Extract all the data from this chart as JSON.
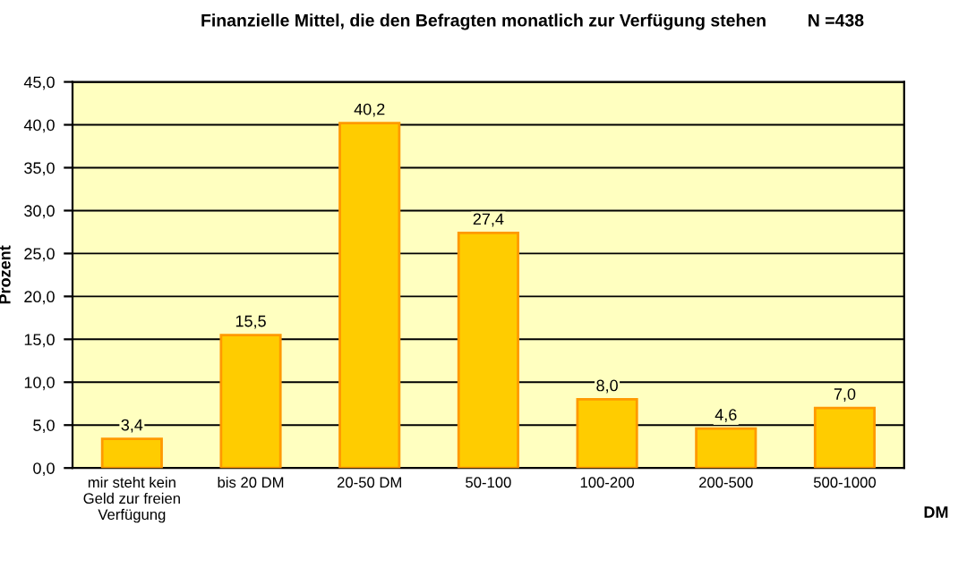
{
  "chart_data": {
    "type": "bar",
    "title": "Finanzielle Mittel, die den Befragten monatlich zur Verfügung stehen",
    "annotations": [
      "N =438"
    ],
    "xlabel": "DM",
    "ylabel": "Prozent",
    "categories": [
      "mir steht kein\nGeld zur freien\nVerfügung",
      "bis 20 DM",
      "20-50 DM",
      "50-100",
      "100-200",
      "200-500",
      "500-1000"
    ],
    "values": [
      3.4,
      15.5,
      40.2,
      27.4,
      8.0,
      4.6,
      7.0
    ],
    "value_labels": [
      "3,4",
      "15,5",
      "40,2",
      "27,4",
      "8,0",
      "4,6",
      "7,0"
    ],
    "color": "#ffcc00",
    "ylim": [
      0,
      45
    ],
    "yticks": [
      {
        "value": 0,
        "label": "0,0"
      },
      {
        "value": 5,
        "label": "5,0"
      },
      {
        "value": 10,
        "label": "10,0"
      },
      {
        "value": 15,
        "label": "15,0"
      },
      {
        "value": 20,
        "label": "20,0"
      },
      {
        "value": 25,
        "label": "25,0"
      },
      {
        "value": 30,
        "label": "30,0"
      },
      {
        "value": 35,
        "label": "35,0"
      },
      {
        "value": 40,
        "label": "40,0"
      },
      {
        "value": 45,
        "label": "45,0"
      }
    ],
    "grid": "y",
    "legend": false
  }
}
